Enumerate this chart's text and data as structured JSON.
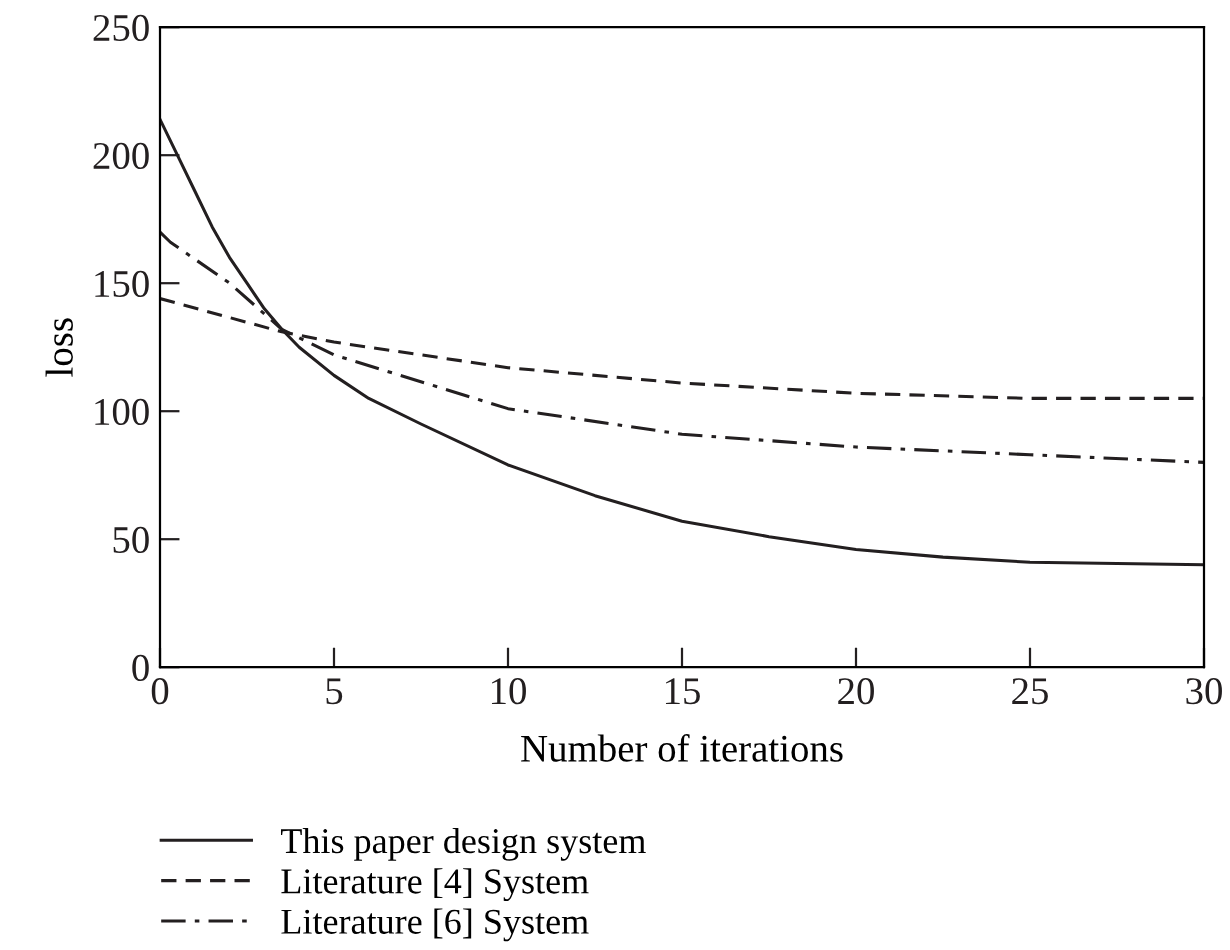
{
  "chart_data": {
    "type": "line",
    "xlabel": "Number of iterations",
    "ylabel": "loss",
    "xlim": [
      0,
      30
    ],
    "xticks": [
      0,
      5,
      10,
      15,
      20,
      25,
      30
    ],
    "ylim": [
      0,
      250
    ],
    "yticks": [
      0,
      50,
      100,
      150,
      200,
      250
    ],
    "grid": false,
    "legend": "bottom",
    "marker": "none",
    "series": [
      {
        "name": "This paper design system",
        "color": "#231f20",
        "line_style": "solid",
        "x": [
          0,
          0.5,
          1,
          1.5,
          2,
          2.5,
          3,
          3.5,
          4,
          5,
          6,
          7.5,
          10,
          12.5,
          15,
          17.5,
          20,
          22.5,
          25,
          30
        ],
        "values": [
          214,
          200,
          186,
          172,
          160,
          150,
          140,
          132,
          125,
          114,
          105,
          95,
          79,
          67,
          57,
          51,
          46,
          43,
          41,
          40
        ]
      },
      {
        "name": "Literature [4] System",
        "color": "#231f20",
        "line_style": "dashed",
        "x": [
          0,
          3.5,
          5,
          10,
          15,
          20,
          25,
          30
        ],
        "values": [
          144,
          131,
          127,
          117,
          111,
          107,
          105,
          105
        ]
      },
      {
        "name": "Literature [6] System",
        "color": "#231f20",
        "line_style": "dashdot",
        "x": [
          0,
          0.3,
          2,
          3.5,
          5,
          10,
          15,
          20,
          25,
          30
        ],
        "values": [
          170,
          166,
          150,
          132,
          122,
          101,
          91,
          86,
          83,
          80
        ]
      }
    ]
  }
}
